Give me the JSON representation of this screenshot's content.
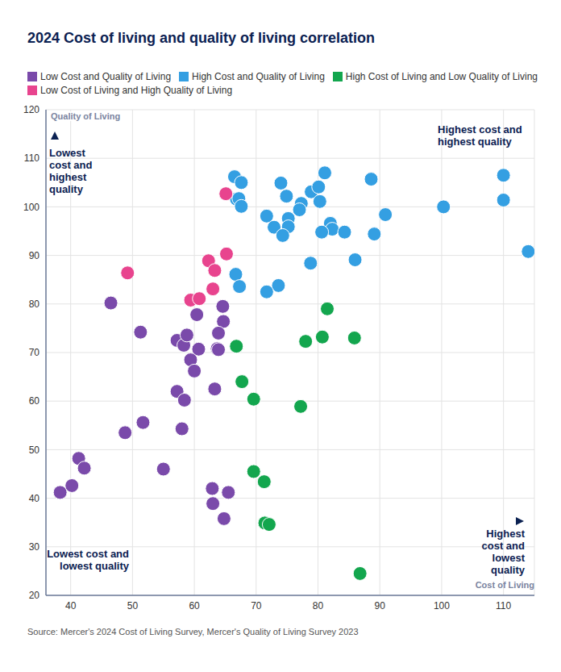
{
  "chart_data": {
    "type": "scatter",
    "title": "2024 Cost of living and quality of living correlation",
    "x_label": "Cost of Living",
    "y_label": "Quality of Living",
    "xlim": [
      36,
      115
    ],
    "xticks": [
      40,
      50,
      60,
      70,
      80,
      90,
      100,
      110
    ],
    "ylim": [
      20,
      120
    ],
    "yticks": [
      20,
      30,
      40,
      50,
      60,
      70,
      80,
      90,
      100,
      110,
      120
    ],
    "grid": true,
    "legend": "top",
    "marker": "circle",
    "series": [
      {
        "name": "Low Cost and Quality of Living",
        "color": "#7a4aaa",
        "x": [
          46.5,
          51.3,
          57.2,
          58.3,
          58.8,
          60.4,
          64.6,
          64.7,
          63.9,
          63.7,
          63.9,
          60.7,
          59.4,
          60.0,
          57.2,
          58.4,
          63.3,
          51.7,
          48.8,
          58.0,
          41.3,
          42.2,
          55.0,
          38.3,
          40.2,
          62.9,
          63.0,
          65.5,
          64.8
        ],
        "values": [
          80.2,
          74.2,
          72.5,
          71.5,
          73.6,
          77.8,
          79.5,
          76.4,
          74.0,
          70.8,
          70.6,
          70.7,
          68.5,
          66.2,
          62.0,
          60.2,
          62.5,
          55.6,
          53.5,
          54.3,
          48.2,
          46.2,
          46.0,
          41.2,
          42.6,
          42.0,
          38.9,
          41.2,
          35.8
        ]
      },
      {
        "name": "High Cost and Quality of Living",
        "color": "#349fe2",
        "x": [
          66.5,
          67.6,
          66.8,
          67.2,
          67.6,
          74.0,
          74.9,
          81.1,
          78.9,
          80.1,
          88.6,
          110.0,
          110.0,
          100.3,
          77.3,
          80.3,
          77.0,
          90.9,
          71.7,
          75.2,
          72.9,
          75.2,
          74.3,
          82.0,
          82.3,
          80.6,
          84.3,
          89.1,
          114.0,
          86.0,
          78.8,
          66.7,
          67.3,
          73.6,
          71.7
        ],
        "values": [
          106.2,
          105.0,
          101.6,
          101.7,
          100.1,
          104.9,
          102.2,
          107.0,
          103.1,
          104.1,
          105.7,
          106.5,
          101.4,
          100.0,
          100.7,
          101.1,
          99.4,
          98.4,
          98.1,
          97.6,
          95.8,
          95.9,
          94.1,
          96.6,
          95.4,
          94.8,
          94.8,
          94.4,
          90.8,
          89.1,
          88.4,
          86.1,
          83.6,
          83.8,
          82.5
        ]
      },
      {
        "name": "High Cost of Living and Low Quality of Living",
        "color": "#13a64e",
        "x": [
          81.5,
          66.8,
          78.0,
          80.7,
          85.9,
          67.7,
          69.6,
          77.2,
          69.6,
          71.3,
          71.4,
          72.1,
          86.8
        ],
        "values": [
          79.0,
          71.3,
          72.3,
          73.2,
          73.0,
          64.0,
          60.4,
          58.9,
          45.5,
          43.4,
          34.9,
          34.6,
          24.5
        ]
      },
      {
        "name": "Low Cost of Living and High Quality of Living",
        "color": "#e8448e",
        "x": [
          49.2,
          65.1,
          62.3,
          63.3,
          65.2,
          63.0,
          59.4,
          60.8
        ],
        "values": [
          86.4,
          102.7,
          88.9,
          86.9,
          90.3,
          83.1,
          80.8,
          81.1
        ]
      }
    ],
    "annotations": [
      {
        "lines": [
          "Lowest",
          "cost and",
          "highest",
          "quality"
        ]
      },
      {
        "lines": [
          "Highest cost and",
          "highest quality"
        ]
      },
      {
        "lines": [
          "Lowest cost and",
          "lowest quality"
        ]
      },
      {
        "lines": [
          "Highest",
          "cost and",
          "lowest",
          "quality"
        ]
      }
    ],
    "source": "Source: Mercer's 2024 Cost of Living Survey, Mercer's Quality of Living Survey 2023"
  }
}
